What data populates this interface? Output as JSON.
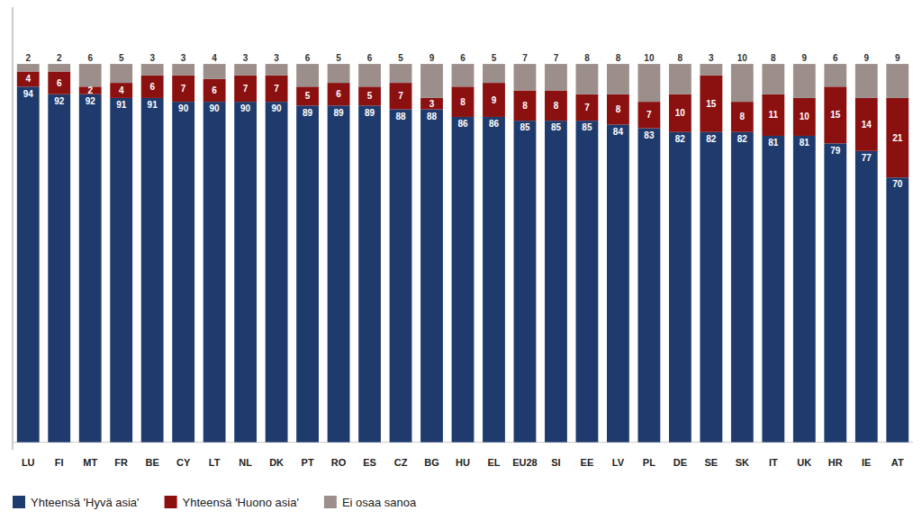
{
  "chart_data": {
    "type": "bar",
    "stacked": true,
    "data_labels": true,
    "grid": false,
    "legend": "bottom",
    "tick_labels": "x",
    "categories": [
      "LU",
      "FI",
      "MT",
      "FR",
      "BE",
      "CY",
      "LT",
      "NL",
      "DK",
      "PT",
      "RO",
      "ES",
      "CZ",
      "BG",
      "HU",
      "EL",
      "EU28",
      "SI",
      "EE",
      "LV",
      "PL",
      "DE",
      "SE",
      "SK",
      "IT",
      "UK",
      "HR",
      "IE",
      "AT"
    ],
    "ylim": [
      -2,
      115
    ],
    "series": [
      {
        "name": "Yhteensä 'Hyvä asia'",
        "color": "#1F3B6E",
        "values": [
          94,
          92,
          92,
          91,
          91,
          90,
          90,
          90,
          90,
          89,
          89,
          89,
          88,
          88,
          86,
          86,
          85,
          85,
          85,
          84,
          83,
          82,
          82,
          82,
          81,
          81,
          79,
          77,
          70
        ]
      },
      {
        "name": "Yhteensä 'Huono asia'",
        "color": "#8B1010",
        "values": [
          4,
          6,
          2,
          4,
          6,
          7,
          6,
          7,
          7,
          5,
          6,
          5,
          7,
          3,
          8,
          9,
          8,
          8,
          7,
          8,
          7,
          10,
          15,
          8,
          11,
          10,
          15,
          14,
          21
        ]
      },
      {
        "name": "Ei osaa sanoa",
        "color": "#9C8F8B",
        "values": [
          2,
          2,
          6,
          5,
          3,
          3,
          4,
          3,
          3,
          6,
          5,
          6,
          5,
          9,
          6,
          5,
          7,
          7,
          8,
          8,
          10,
          8,
          3,
          10,
          8,
          9,
          6,
          9,
          9
        ]
      }
    ]
  }
}
